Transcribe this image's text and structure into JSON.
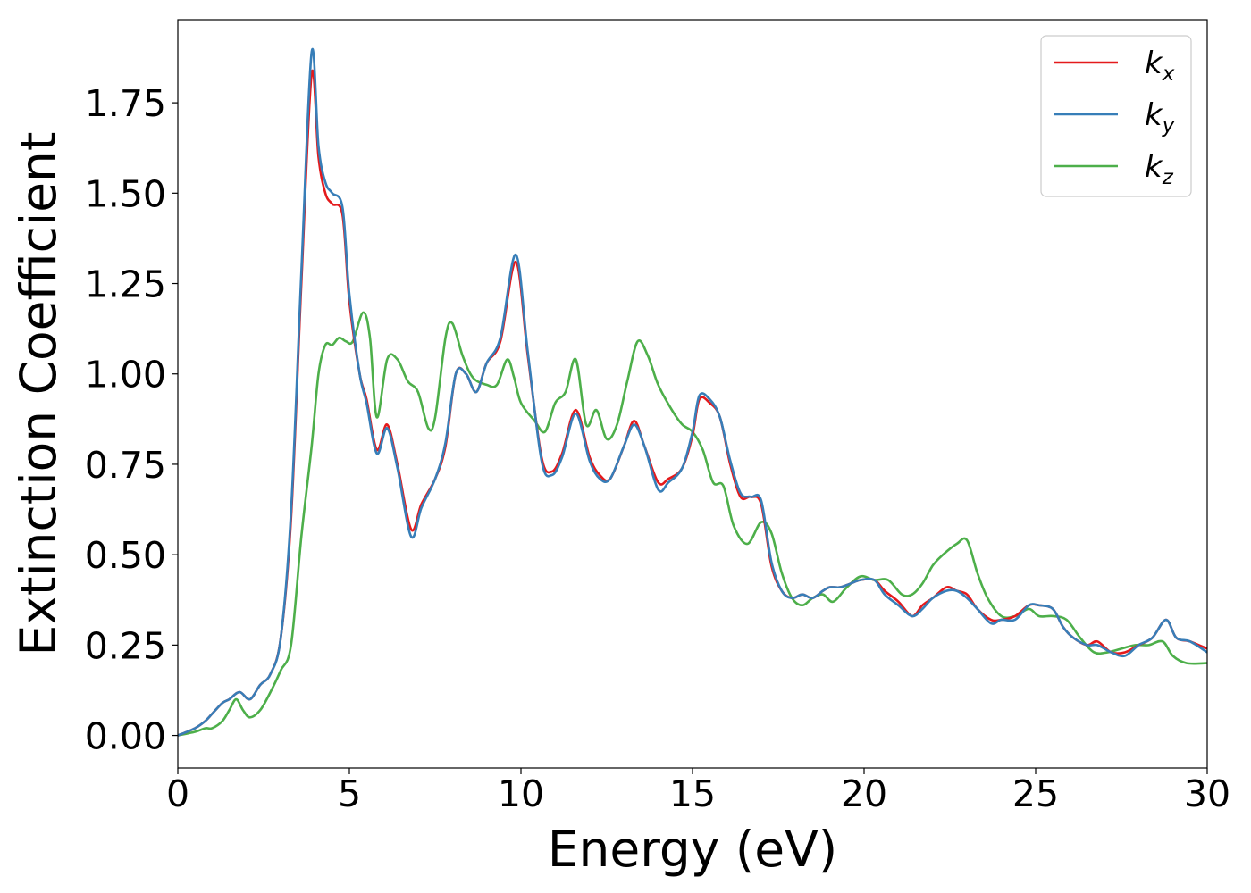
{
  "chart_data": {
    "type": "line",
    "title": "",
    "xlabel": "Energy (eV)",
    "ylabel": "Extinction Coefficient",
    "xlim": [
      0,
      30
    ],
    "ylim": [
      -0.09,
      1.98
    ],
    "xticks": [
      0,
      5,
      10,
      15,
      20,
      25,
      30
    ],
    "xtick_labels": [
      "0",
      "5",
      "10",
      "15",
      "20",
      "25",
      "30"
    ],
    "yticks": [
      0.0,
      0.25,
      0.5,
      0.75,
      1.0,
      1.25,
      1.5,
      1.75
    ],
    "ytick_labels": [
      "0.00",
      "0.25",
      "0.50",
      "0.75",
      "1.00",
      "1.25",
      "1.50",
      "1.75"
    ],
    "grid": false,
    "legend_position": "top-right",
    "series": [
      {
        "name": "k_x",
        "label_base": "k",
        "label_sub": "x",
        "color": "#e41a1c",
        "x": [
          0,
          0.5,
          0.8,
          1.0,
          1.3,
          1.5,
          1.8,
          2.1,
          2.4,
          2.7,
          3.0,
          3.3,
          3.6,
          3.9,
          4.1,
          4.3,
          4.5,
          4.8,
          5.0,
          5.3,
          5.5,
          5.8,
          6.1,
          6.4,
          6.8,
          7.1,
          7.5,
          7.8,
          8.1,
          8.4,
          8.7,
          9.0,
          9.4,
          9.85,
          10.2,
          10.6,
          10.9,
          11.2,
          11.6,
          12.0,
          12.3,
          12.6,
          13.0,
          13.3,
          13.6,
          14.0,
          14.3,
          14.7,
          15.0,
          15.2,
          15.5,
          15.8,
          16.1,
          16.4,
          16.7,
          17.0,
          17.3,
          17.6,
          17.9,
          18.2,
          18.5,
          18.8,
          19.0,
          19.3,
          19.6,
          19.9,
          20.3,
          20.6,
          21.0,
          21.4,
          21.7,
          22.0,
          22.4,
          22.7,
          23.0,
          23.3,
          23.7,
          24.0,
          24.4,
          24.8,
          25.1,
          25.5,
          25.8,
          26.1,
          26.5,
          26.8,
          27.2,
          27.6,
          28.0,
          28.4,
          28.8,
          29.1,
          29.5,
          30.0
        ],
        "y": [
          0.0,
          0.02,
          0.04,
          0.06,
          0.09,
          0.1,
          0.12,
          0.1,
          0.14,
          0.17,
          0.27,
          0.6,
          1.25,
          1.83,
          1.6,
          1.5,
          1.47,
          1.44,
          1.2,
          1.0,
          0.93,
          0.79,
          0.86,
          0.75,
          0.57,
          0.64,
          0.71,
          0.8,
          1.0,
          1.0,
          0.95,
          1.03,
          1.09,
          1.31,
          1.05,
          0.77,
          0.73,
          0.78,
          0.9,
          0.77,
          0.72,
          0.71,
          0.8,
          0.87,
          0.8,
          0.7,
          0.71,
          0.74,
          0.83,
          0.93,
          0.92,
          0.88,
          0.75,
          0.66,
          0.66,
          0.64,
          0.47,
          0.4,
          0.38,
          0.39,
          0.38,
          0.4,
          0.41,
          0.41,
          0.42,
          0.43,
          0.43,
          0.4,
          0.37,
          0.33,
          0.36,
          0.38,
          0.41,
          0.4,
          0.39,
          0.35,
          0.32,
          0.32,
          0.33,
          0.36,
          0.36,
          0.35,
          0.3,
          0.27,
          0.25,
          0.26,
          0.23,
          0.23,
          0.25,
          0.27,
          0.32,
          0.27,
          0.26,
          0.24
        ]
      },
      {
        "name": "k_y",
        "label_base": "k",
        "label_sub": "y",
        "color": "#377eb8",
        "x": [
          0,
          0.5,
          0.8,
          1.0,
          1.3,
          1.5,
          1.8,
          2.1,
          2.4,
          2.7,
          3.0,
          3.3,
          3.6,
          3.9,
          4.1,
          4.3,
          4.5,
          4.8,
          5.0,
          5.3,
          5.5,
          5.8,
          6.1,
          6.4,
          6.8,
          7.1,
          7.5,
          7.8,
          8.1,
          8.4,
          8.7,
          9.0,
          9.4,
          9.85,
          10.2,
          10.6,
          10.9,
          11.2,
          11.6,
          12.0,
          12.3,
          12.6,
          13.0,
          13.3,
          13.6,
          14.0,
          14.3,
          14.7,
          15.0,
          15.2,
          15.5,
          15.8,
          16.1,
          16.4,
          16.7,
          17.0,
          17.3,
          17.6,
          17.9,
          18.2,
          18.5,
          18.8,
          19.0,
          19.3,
          19.6,
          19.9,
          20.3,
          20.6,
          21.0,
          21.4,
          21.7,
          22.0,
          22.4,
          22.7,
          23.0,
          23.3,
          23.7,
          24.0,
          24.4,
          24.8,
          25.1,
          25.5,
          25.8,
          26.1,
          26.5,
          26.8,
          27.2,
          27.6,
          28.0,
          28.4,
          28.8,
          29.1,
          29.5,
          30.0
        ],
        "y": [
          0.0,
          0.02,
          0.04,
          0.06,
          0.09,
          0.1,
          0.12,
          0.1,
          0.14,
          0.17,
          0.27,
          0.62,
          1.28,
          1.89,
          1.63,
          1.53,
          1.5,
          1.46,
          1.22,
          1.0,
          0.92,
          0.78,
          0.85,
          0.74,
          0.55,
          0.63,
          0.71,
          0.81,
          1.0,
          1.0,
          0.95,
          1.03,
          1.1,
          1.33,
          1.06,
          0.76,
          0.72,
          0.77,
          0.89,
          0.76,
          0.71,
          0.71,
          0.8,
          0.86,
          0.8,
          0.68,
          0.7,
          0.74,
          0.84,
          0.94,
          0.93,
          0.88,
          0.76,
          0.67,
          0.66,
          0.65,
          0.48,
          0.4,
          0.38,
          0.39,
          0.38,
          0.4,
          0.41,
          0.41,
          0.42,
          0.43,
          0.43,
          0.39,
          0.36,
          0.33,
          0.35,
          0.38,
          0.4,
          0.4,
          0.38,
          0.35,
          0.31,
          0.32,
          0.32,
          0.36,
          0.36,
          0.35,
          0.3,
          0.27,
          0.25,
          0.25,
          0.23,
          0.22,
          0.25,
          0.27,
          0.32,
          0.27,
          0.26,
          0.23
        ]
      },
      {
        "name": "k_z",
        "label_base": "k",
        "label_sub": "z",
        "color": "#4daf4a",
        "x": [
          0,
          0.5,
          0.8,
          1.0,
          1.3,
          1.5,
          1.7,
          1.9,
          2.1,
          2.4,
          2.7,
          3.0,
          3.3,
          3.6,
          3.9,
          4.1,
          4.3,
          4.5,
          4.7,
          4.9,
          5.1,
          5.4,
          5.6,
          5.8,
          6.1,
          6.4,
          6.7,
          7.0,
          7.3,
          7.5,
          7.8,
          8.0,
          8.3,
          8.6,
          9.0,
          9.3,
          9.6,
          9.8,
          10.0,
          10.4,
          10.7,
          11.0,
          11.3,
          11.6,
          11.9,
          12.2,
          12.5,
          12.8,
          13.1,
          13.4,
          13.7,
          14.0,
          14.4,
          14.7,
          15.0,
          15.3,
          15.6,
          15.9,
          16.2,
          16.6,
          17.0,
          17.3,
          17.6,
          17.9,
          18.2,
          18.5,
          18.8,
          19.1,
          19.5,
          19.9,
          20.3,
          20.7,
          21.1,
          21.4,
          21.7,
          22.0,
          22.3,
          22.7,
          23.0,
          23.3,
          23.6,
          24.0,
          24.4,
          24.8,
          25.1,
          25.5,
          25.9,
          26.3,
          26.7,
          27.1,
          27.5,
          27.9,
          28.3,
          28.7,
          29.0,
          29.4,
          30.0
        ],
        "y": [
          0.0,
          0.01,
          0.02,
          0.02,
          0.04,
          0.07,
          0.1,
          0.07,
          0.05,
          0.07,
          0.12,
          0.18,
          0.25,
          0.55,
          0.8,
          1.0,
          1.08,
          1.08,
          1.1,
          1.09,
          1.09,
          1.17,
          1.1,
          0.88,
          1.04,
          1.04,
          0.98,
          0.95,
          0.85,
          0.88,
          1.1,
          1.14,
          1.05,
          0.99,
          0.97,
          0.97,
          1.04,
          0.99,
          0.92,
          0.87,
          0.84,
          0.92,
          0.95,
          1.04,
          0.86,
          0.9,
          0.82,
          0.86,
          0.98,
          1.09,
          1.05,
          0.97,
          0.9,
          0.86,
          0.84,
          0.79,
          0.7,
          0.69,
          0.58,
          0.53,
          0.59,
          0.56,
          0.45,
          0.38,
          0.36,
          0.38,
          0.39,
          0.37,
          0.41,
          0.44,
          0.43,
          0.43,
          0.39,
          0.39,
          0.42,
          0.47,
          0.5,
          0.53,
          0.54,
          0.45,
          0.38,
          0.33,
          0.33,
          0.35,
          0.33,
          0.33,
          0.32,
          0.27,
          0.23,
          0.23,
          0.24,
          0.25,
          0.25,
          0.26,
          0.22,
          0.2,
          0.2
        ]
      }
    ]
  }
}
